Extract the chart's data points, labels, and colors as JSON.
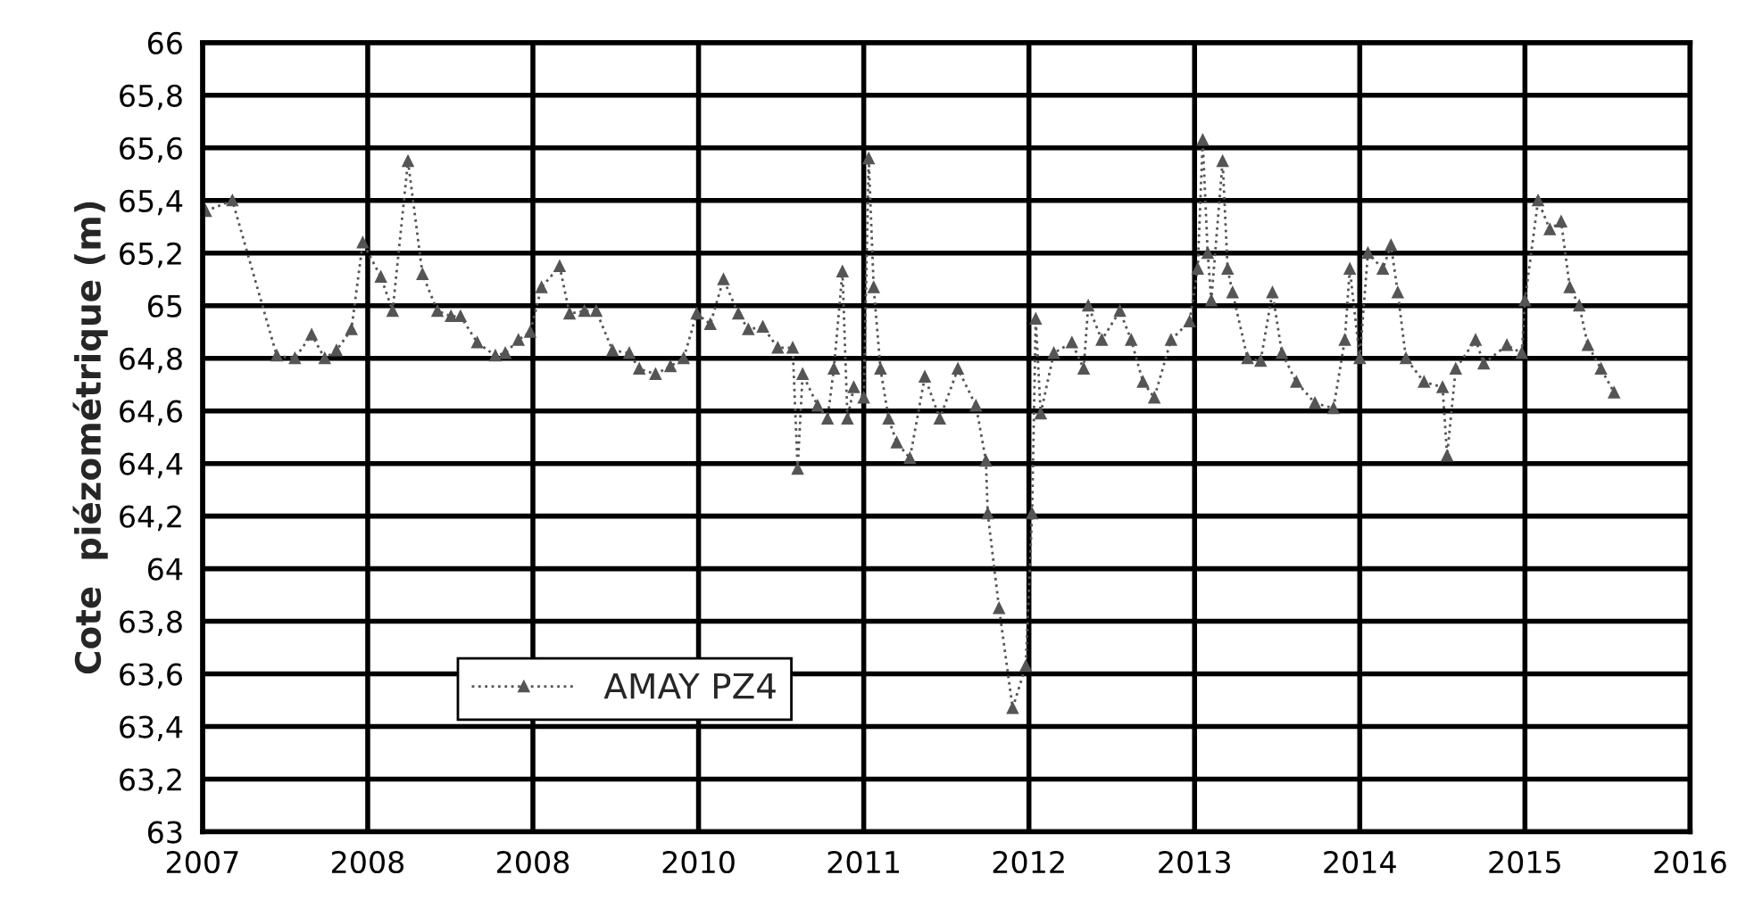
{
  "chart_data": {
    "type": "line",
    "ylabel": "Cote  piézométrique (m)",
    "xlim": [
      "2007-01-01",
      "2016-01-01"
    ],
    "xticks": [
      {
        "value": "2007-01-01",
        "label": "2007"
      },
      {
        "value": "2008-01-01",
        "label": "2008"
      },
      {
        "value": "2008-12-31",
        "label": "2008"
      },
      {
        "value": "2010-01-01",
        "label": "2010"
      },
      {
        "value": "2011-01-01",
        "label": "2011"
      },
      {
        "value": "2012-01-01",
        "label": "2012"
      },
      {
        "value": "2013-01-01",
        "label": "2013"
      },
      {
        "value": "2014-01-01",
        "label": "2014"
      },
      {
        "value": "2015-01-01",
        "label": "2015"
      },
      {
        "value": "2016-01-01",
        "label": "2016"
      }
    ],
    "ylim": [
      63,
      66
    ],
    "yticks": [
      63,
      {
        "value": 63.2,
        "label": "63,2"
      },
      {
        "value": 63.4,
        "label": "63,4"
      },
      {
        "value": 63.6,
        "label": "63,6"
      },
      {
        "value": 63.8,
        "label": "63,8"
      },
      64,
      {
        "value": 64.2,
        "label": "64,2"
      },
      {
        "value": 64.4,
        "label": "64,4"
      },
      {
        "value": 64.6,
        "label": "64,6"
      },
      {
        "value": 64.8,
        "label": "64,8"
      },
      65,
      {
        "value": 65.2,
        "label": "65,2"
      },
      {
        "value": 65.4,
        "label": "65,4"
      },
      {
        "value": 65.6,
        "label": "65,6"
      },
      {
        "value": 65.8,
        "label": "65,8"
      },
      66
    ],
    "grid": true,
    "legend": "bottom left",
    "marker": "triangle",
    "line_style": "dotted",
    "series": [
      {
        "name": "AMAY PZ4",
        "color": "#555555",
        "x": [
          "2007-01-08",
          "2007-03-08",
          "2007-06-14",
          "2007-07-24",
          "2007-08-30",
          "2007-09-28",
          "2007-10-24",
          "2007-11-26",
          "2007-12-21",
          "2008-01-30",
          "2008-02-25",
          "2008-03-30",
          "2008-05-01",
          "2008-06-03",
          "2008-07-03",
          "2008-07-24",
          "2008-08-30",
          "2008-10-09",
          "2008-10-31",
          "2008-11-29",
          "2008-12-25",
          "2009-01-19",
          "2009-02-28",
          "2009-03-22",
          "2009-04-24",
          "2009-05-20",
          "2009-06-25",
          "2009-08-01",
          "2009-08-23",
          "2009-09-28",
          "2009-10-31",
          "2009-11-29",
          "2009-12-28",
          "2010-01-27",
          "2010-02-25",
          "2010-03-30",
          "2010-04-21",
          "2010-05-23",
          "2010-06-25",
          "2010-07-28",
          "2010-08-08",
          "2010-08-19",
          "2010-09-21",
          "2010-10-13",
          "2010-10-27",
          "2010-11-15",
          "2010-11-26",
          "2010-12-10",
          "2011-01-01",
          "2011-01-12",
          "2011-01-23",
          "2011-02-07",
          "2011-02-25",
          "2011-03-15",
          "2011-04-13",
          "2011-05-16",
          "2011-06-18",
          "2011-07-28",
          "2011-09-06",
          "2011-09-28",
          "2011-10-02",
          "2011-10-27",
          "2011-11-26",
          "2011-12-25",
          "2012-01-08",
          "2012-01-16",
          "2012-01-27",
          "2012-02-25",
          "2012-04-05",
          "2012-05-01",
          "2012-05-11",
          "2012-06-10",
          "2012-07-20",
          "2012-08-14",
          "2012-09-09",
          "2012-10-04",
          "2012-11-10",
          "2012-12-21",
          "2013-01-08",
          "2013-01-19",
          "2013-01-30",
          "2013-02-07",
          "2013-03-04",
          "2013-03-15",
          "2013-03-26",
          "2013-04-28",
          "2013-05-27",
          "2013-06-22",
          "2013-07-13",
          "2013-08-14",
          "2013-09-24",
          "2013-11-04",
          "2013-11-29",
          "2013-12-10",
          "2014-01-01",
          "2014-01-19",
          "2014-02-21",
          "2014-03-11",
          "2014-03-26",
          "2014-04-13",
          "2014-05-23",
          "2014-07-03",
          "2014-07-13",
          "2014-08-01",
          "2014-09-14",
          "2014-10-02",
          "2014-11-22",
          "2014-12-25",
          "2015-01-01",
          "2015-01-30",
          "2015-02-25",
          "2015-03-22",
          "2015-04-10",
          "2015-05-01",
          "2015-05-20",
          "2015-06-18",
          "2015-07-17"
        ],
        "values": [
          65.36,
          65.4,
          64.81,
          64.8,
          64.89,
          64.8,
          64.83,
          64.91,
          65.24,
          65.11,
          64.98,
          65.55,
          65.12,
          64.98,
          64.96,
          64.96,
          64.86,
          64.81,
          64.82,
          64.87,
          64.9,
          65.07,
          65.15,
          64.97,
          64.98,
          64.98,
          64.83,
          64.82,
          64.76,
          64.74,
          64.77,
          64.8,
          64.97,
          64.93,
          65.1,
          64.97,
          64.91,
          64.92,
          64.84,
          64.84,
          64.38,
          64.74,
          64.62,
          64.57,
          64.76,
          65.13,
          64.57,
          64.69,
          64.65,
          65.56,
          65.07,
          64.76,
          64.57,
          64.48,
          64.42,
          64.73,
          64.57,
          64.76,
          64.62,
          64.41,
          64.21,
          63.85,
          63.47,
          63.63,
          64.21,
          64.95,
          64.59,
          64.82,
          64.86,
          64.76,
          65.0,
          64.87,
          64.98,
          64.87,
          64.71,
          64.65,
          64.87,
          64.94,
          65.14,
          65.63,
          65.2,
          65.02,
          65.55,
          65.14,
          65.05,
          64.8,
          64.79,
          65.05,
          64.82,
          64.71,
          64.63,
          64.61,
          64.87,
          65.14,
          64.8,
          65.2,
          65.14,
          65.23,
          65.05,
          64.8,
          64.71,
          64.69,
          64.43,
          64.76,
          64.87,
          64.78,
          64.85,
          64.82,
          65.02,
          65.4,
          65.29,
          65.32,
          65.07,
          65.0,
          64.85,
          64.76,
          64.67
        ]
      }
    ]
  }
}
